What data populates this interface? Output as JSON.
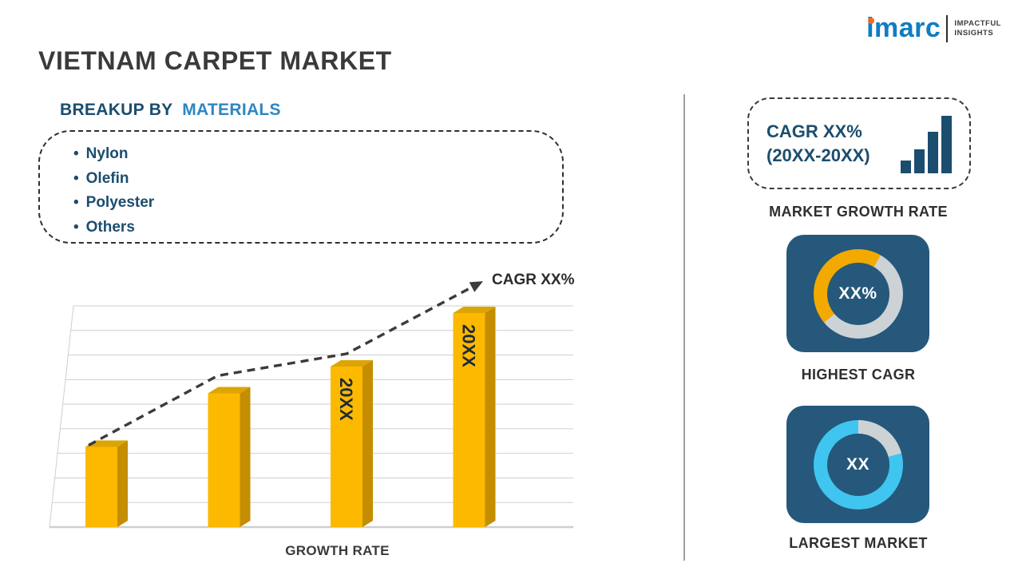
{
  "header": {
    "title": "VIETNAM CARPET MARKET",
    "logo": {
      "brand": "imarc",
      "tagline_line1": "IMPACTFUL",
      "tagline_line2": "INSIGHTS"
    }
  },
  "left": {
    "breakup_label": "BREAKUP BY",
    "breakup_highlight": "MATERIALS",
    "materials": [
      "Nylon",
      "Olefin",
      "Polyester",
      "Others"
    ]
  },
  "chart_data": {
    "type": "bar",
    "bar_labels": [
      "",
      "",
      "20XX",
      "20XX"
    ],
    "values": [
      30,
      50,
      60,
      80
    ],
    "ylim": [
      0,
      100
    ],
    "xlabel": "GROWTH RATE",
    "annotation": "CAGR XX%",
    "grid": true,
    "trend": "dashed-arrow-up",
    "legend": "none",
    "colors": {
      "front": "#FCB900",
      "side": "#C48E00",
      "top": "#DDA504",
      "label": "#1F2B35"
    }
  },
  "right": {
    "growth_box": {
      "line1": "CAGR XX%",
      "line2": "(20XX-20XX)"
    },
    "market_growth_label": "MARKET GROWTH RATE",
    "highest_cagr": {
      "value": "XX%",
      "label": "HIGHEST CAGR",
      "donut": {
        "color": "#F2A900",
        "track": "#CDD2D6",
        "start_deg": 230,
        "sweep_deg": 160
      }
    },
    "largest_market": {
      "value": "XX",
      "label": "LARGEST MARKET",
      "donut": {
        "color": "#3FC5F0",
        "track": "#CDD2D6",
        "start_deg": 75,
        "sweep_deg": 285
      }
    }
  },
  "colors": {
    "navy": "#1B4D6E",
    "accent_blue": "#2E86C1",
    "title_gray": "#3A3A3A",
    "card_blue": "#25587B",
    "logo_blue": "#0F7DC2",
    "logo_orange": "#F26A21",
    "divider_gray": "#9AA0A6"
  }
}
